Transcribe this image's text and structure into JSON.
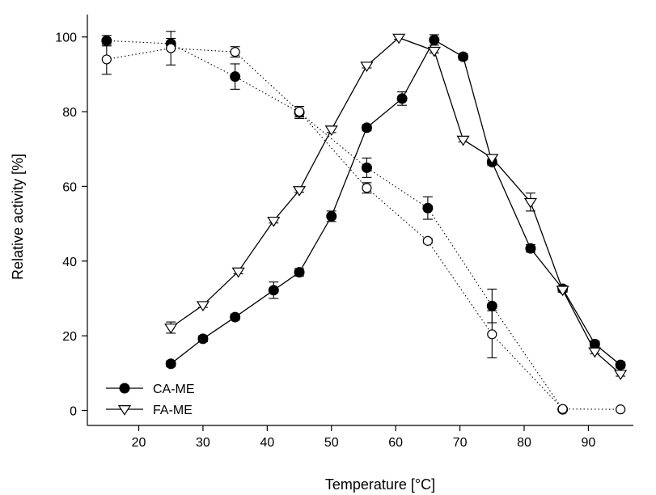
{
  "chart_data": {
    "type": "line",
    "title": "",
    "xlabel": "Temperature [°C]",
    "ylabel": "Relative activity [%]",
    "xlim": [
      12,
      97
    ],
    "ylim": [
      -4,
      106
    ],
    "xticks": [
      20,
      30,
      40,
      50,
      60,
      70,
      80,
      90
    ],
    "yticks": [
      0,
      20,
      40,
      60,
      80,
      100
    ],
    "grid": false,
    "legend_position": "bottom-left",
    "series": [
      {
        "name": "CA-ME",
        "marker": "filled-circle",
        "line": "solid",
        "color": "#000000",
        "x": [
          25,
          30,
          35,
          41,
          45,
          50,
          55.5,
          61,
          66,
          70.5,
          75,
          81,
          86,
          91,
          95
        ],
        "y": [
          12.5,
          19.2,
          25,
          32.2,
          37,
          52,
          75.7,
          83.5,
          99.2,
          94.7,
          66.5,
          43.4,
          32.6,
          17.8,
          12.2
        ],
        "err": [
          0.8,
          0.8,
          0.8,
          2.2,
          1.0,
          1.4,
          0.8,
          1.8,
          1.4,
          0.8,
          0.8,
          1.0,
          0.8,
          0.8,
          0.8
        ]
      },
      {
        "name": "FA-ME",
        "marker": "open-triangle-down",
        "line": "solid",
        "color": "#000000",
        "x": [
          25,
          30,
          35.5,
          41,
          45,
          50,
          55.5,
          60.5,
          66,
          70.5,
          75,
          81,
          86,
          91,
          95
        ],
        "y": [
          22.2,
          28.2,
          37.2,
          50.8,
          59,
          75.2,
          92.3,
          99.8,
          96.3,
          72.5,
          67.6,
          55.8,
          32.3,
          15.8,
          9.8
        ],
        "err": [
          1.5,
          0.6,
          0.6,
          0.6,
          0.6,
          0.8,
          0.6,
          0.4,
          0.6,
          0.6,
          0.8,
          2.4,
          0.6,
          0.6,
          0.6
        ]
      },
      {
        "name": "",
        "marker": "filled-circle",
        "line": "dotted",
        "color": "#000000",
        "x": [
          15,
          25,
          35,
          45,
          55.5,
          65,
          75,
          86
        ],
        "y": [
          99,
          98.2,
          89.4,
          79.8,
          65,
          54.2,
          28,
          0.3
        ],
        "err": [
          1.4,
          1.4,
          3.4,
          1.6,
          2.6,
          3.0,
          4.5,
          0.3
        ]
      },
      {
        "name": "",
        "marker": "open-circle",
        "line": "dotted",
        "color": "#000000",
        "x": [
          15,
          25,
          35,
          45,
          55.5,
          65,
          75,
          86,
          95
        ],
        "y": [
          94,
          97,
          96,
          80,
          59.6,
          45.4,
          20.4,
          0.4,
          0.3
        ],
        "err": [
          4.0,
          4.5,
          1.4,
          1.4,
          1.4,
          0.6,
          6.3,
          0.3,
          0.3
        ]
      }
    ]
  }
}
